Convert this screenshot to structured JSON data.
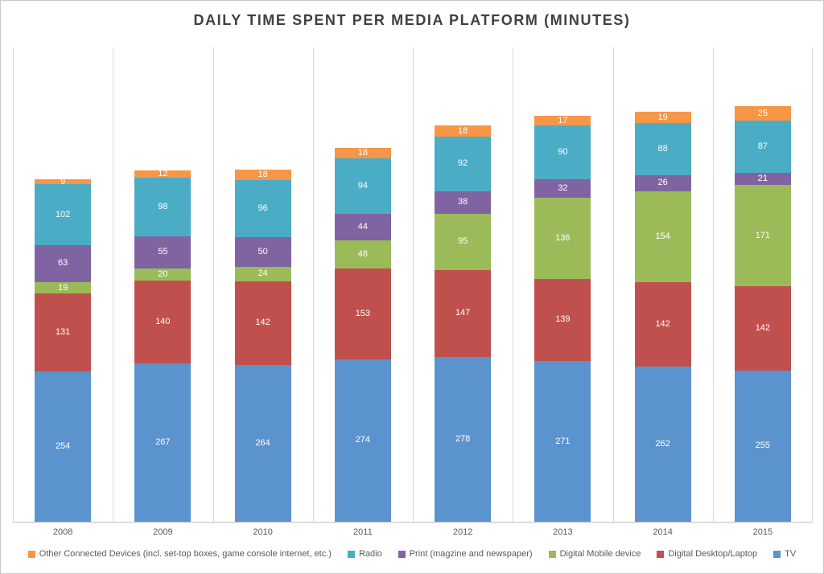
{
  "title": "DAILY TIME SPENT PER MEDIA PLATFORM (MINUTES)",
  "chart_data": {
    "type": "bar",
    "stacked": true,
    "title": "DAILY TIME SPENT PER MEDIA PLATFORM (MINUTES)",
    "categories": [
      "2008",
      "2009",
      "2010",
      "2011",
      "2012",
      "2013",
      "2014",
      "2015"
    ],
    "series": [
      {
        "name": "TV",
        "color": "#5b93ce",
        "values": [
          254,
          267,
          264,
          274,
          278,
          271,
          262,
          255
        ]
      },
      {
        "name": "Digital Desktop/Laptop",
        "color": "#c0504d",
        "values": [
          131,
          140,
          142,
          153,
          147,
          139,
          142,
          142
        ]
      },
      {
        "name": "Digital Mobile device",
        "color": "#9bbb59",
        "values": [
          19,
          20,
          24,
          48,
          95,
          136,
          154,
          171
        ]
      },
      {
        "name": "Print (magzine and newspaper)",
        "color": "#8064a2",
        "values": [
          63,
          55,
          50,
          44,
          38,
          32,
          26,
          21
        ]
      },
      {
        "name": "Radio",
        "color": "#4bacc6",
        "values": [
          102,
          98,
          96,
          94,
          92,
          90,
          88,
          87
        ]
      },
      {
        "name": "Other Connected Devices (incl. set-top boxes, game console internet, etc.)",
        "color": "#f79646",
        "values": [
          9,
          12,
          18,
          18,
          18,
          17,
          19,
          25
        ]
      }
    ],
    "ylim": [
      0,
      800
    ],
    "xlabel": "",
    "ylabel": "",
    "grid": "vertical",
    "legend_position": "bottom",
    "legend_order": [
      5,
      4,
      3,
      2,
      1,
      0
    ],
    "data_labels": "inside-white"
  }
}
